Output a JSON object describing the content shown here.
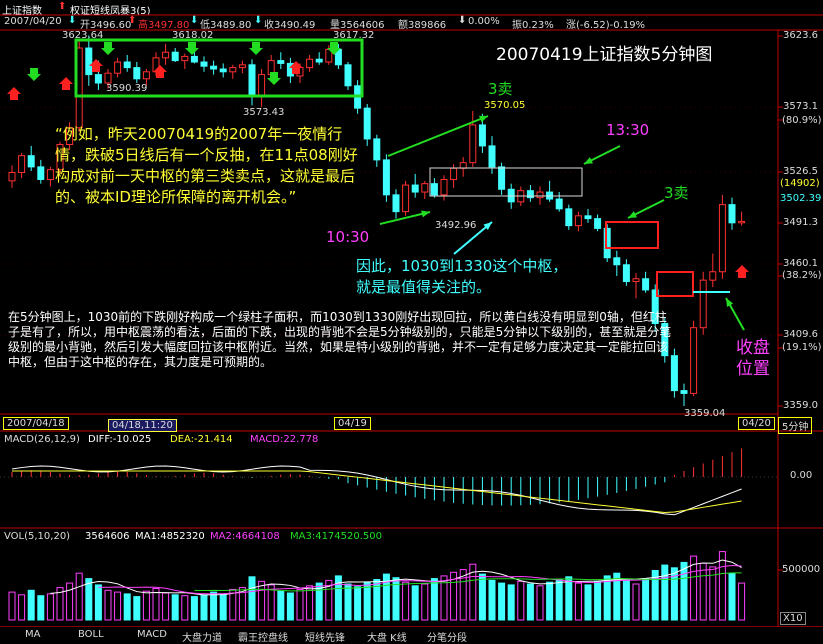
{
  "header": {
    "index_name": "上证指数",
    "ma_label": "权证短线凤暴3(5)",
    "open": "开3496.60",
    "high": "高3497.80",
    "low": "低3489.80",
    "close": "收3490.49",
    "volume": "量3564606",
    "amount": "额389866",
    "change_pct": "0.00%",
    "amplitude": "振0.23%",
    "change": "涨(-6.52)-0.19%",
    "date_tag": "2007/04/20"
  },
  "chart_data": [
    {
      "type": "candlestick",
      "title": "20070419上证指数5分钟图",
      "y_ticks": [
        "3623.6",
        "3573.1",
        "(80.9%)",
        "3526.5",
        "(14902)",
        "3502.39",
        "3491.3",
        "3460.1",
        "(38.2%)",
        "3409.6",
        "(19.1%)",
        "3359.0"
      ],
      "ylim": [
        3359.0,
        3623.6
      ],
      "price_labels": [
        "3623.64",
        "3618.02",
        "3617.32",
        "3590.39",
        "3573.43",
        "3570.05",
        "3492.96",
        "3359.04"
      ],
      "x_labels": [
        "2007/04/18",
        "04/18,11:20",
        "04/19",
        "04/20",
        "5分钟"
      ],
      "candles": [
        [
          3520,
          3531,
          3515,
          3526
        ],
        [
          3526,
          3540,
          3522,
          3538
        ],
        [
          3538,
          3545,
          3527,
          3530
        ],
        [
          3530,
          3535,
          3518,
          3521
        ],
        [
          3521,
          3530,
          3516,
          3528
        ],
        [
          3528,
          3548,
          3525,
          3546
        ],
        [
          3546,
          3562,
          3542,
          3558
        ],
        [
          3558,
          3620,
          3555,
          3615
        ],
        [
          3615,
          3624,
          3588,
          3596
        ],
        [
          3596,
          3606,
          3585,
          3590
        ],
        [
          3590,
          3600,
          3586,
          3597
        ],
        [
          3597,
          3608,
          3594,
          3605
        ],
        [
          3605,
          3610,
          3598,
          3601
        ],
        [
          3601,
          3605,
          3590,
          3593
        ],
        [
          3593,
          3600,
          3588,
          3598
        ],
        [
          3598,
          3612,
          3595,
          3608
        ],
        [
          3608,
          3618,
          3603,
          3612
        ],
        [
          3612,
          3615,
          3605,
          3606
        ],
        [
          3606,
          3611,
          3600,
          3609
        ],
        [
          3609,
          3613,
          3604,
          3605
        ],
        [
          3605,
          3609,
          3598,
          3602
        ],
        [
          3602,
          3606,
          3596,
          3600
        ],
        [
          3600,
          3604,
          3594,
          3598
        ],
        [
          3598,
          3603,
          3593,
          3601
        ],
        [
          3601,
          3606,
          3597,
          3603
        ],
        [
          3603,
          3607,
          3574,
          3580
        ],
        [
          3580,
          3600,
          3573,
          3596
        ],
        [
          3596,
          3610,
          3592,
          3606
        ],
        [
          3606,
          3612,
          3600,
          3604
        ],
        [
          3604,
          3608,
          3590,
          3595
        ],
        [
          3595,
          3604,
          3590,
          3601
        ],
        [
          3601,
          3610,
          3598,
          3607
        ],
        [
          3607,
          3612,
          3603,
          3605
        ],
        [
          3605,
          3617,
          3603,
          3614
        ],
        [
          3614,
          3618,
          3600,
          3603
        ],
        [
          3603,
          3605,
          3585,
          3588
        ],
        [
          3588,
          3592,
          3568,
          3572
        ],
        [
          3572,
          3575,
          3545,
          3550
        ],
        [
          3550,
          3553,
          3530,
          3535
        ],
        [
          3535,
          3539,
          3505,
          3510
        ],
        [
          3510,
          3514,
          3493,
          3498
        ],
        [
          3498,
          3520,
          3495,
          3517
        ],
        [
          3517,
          3525,
          3508,
          3512
        ],
        [
          3512,
          3520,
          3507,
          3518
        ],
        [
          3518,
          3522,
          3508,
          3510
        ],
        [
          3510,
          3524,
          3506,
          3521
        ],
        [
          3521,
          3532,
          3515,
          3529
        ],
        [
          3529,
          3537,
          3523,
          3533
        ],
        [
          3533,
          3570,
          3530,
          3560
        ],
        [
          3560,
          3568,
          3540,
          3545
        ],
        [
          3545,
          3552,
          3525,
          3530
        ],
        [
          3530,
          3533,
          3510,
          3514
        ],
        [
          3514,
          3518,
          3500,
          3505
        ],
        [
          3505,
          3516,
          3502,
          3513
        ],
        [
          3513,
          3517,
          3505,
          3508
        ],
        [
          3508,
          3516,
          3503,
          3512
        ],
        [
          3512,
          3520,
          3505,
          3507
        ],
        [
          3507,
          3512,
          3498,
          3500
        ],
        [
          3500,
          3503,
          3485,
          3488
        ],
        [
          3488,
          3498,
          3484,
          3495
        ],
        [
          3495,
          3500,
          3490,
          3493
        ],
        [
          3493,
          3496,
          3484,
          3486
        ],
        [
          3486,
          3489,
          3462,
          3465
        ],
        [
          3465,
          3470,
          3452,
          3460
        ],
        [
          3460,
          3464,
          3445,
          3448
        ],
        [
          3448,
          3454,
          3436,
          3450
        ],
        [
          3450,
          3455,
          3440,
          3442
        ],
        [
          3442,
          3446,
          3412,
          3418
        ],
        [
          3418,
          3422,
          3390,
          3395
        ],
        [
          3395,
          3400,
          3365,
          3370
        ],
        [
          3370,
          3375,
          3359,
          3368
        ],
        [
          3368,
          3420,
          3366,
          3415
        ],
        [
          3415,
          3455,
          3410,
          3449
        ],
        [
          3449,
          3468,
          3444,
          3455
        ],
        [
          3455,
          3510,
          3450,
          3503
        ],
        [
          3503,
          3508,
          3485,
          3490
        ],
        [
          3490,
          3498,
          3488,
          3491
        ]
      ]
    },
    {
      "type": "line",
      "title": "MACD(26,12,9)",
      "legend": [
        "DIFF:-10.025",
        "DEA:-21.414",
        "MACD:22.778"
      ],
      "y_ticks": [
        "0.00"
      ]
    },
    {
      "type": "bar",
      "title": "VOL(5,10,20)",
      "legend": [
        "3564606",
        "MA1:4852320",
        "MA2:4664108",
        "MA3:4174520.500"
      ],
      "y_ticks": [
        "500000",
        "X10"
      ],
      "values": [
        3.1,
        2.8,
        3.3,
        2.7,
        2.9,
        3.6,
        4.1,
        5.2,
        4.6,
        3.9,
        3.3,
        3.1,
        2.9,
        2.6,
        3.2,
        3.5,
        3.0,
        2.8,
        2.7,
        2.6,
        2.8,
        3.1,
        2.9,
        3.4,
        3.6,
        4.8,
        4.3,
        3.9,
        3.2,
        3.0,
        3.4,
        3.8,
        4.1,
        4.4,
        4.9,
        4.0,
        3.7,
        4.2,
        4.5,
        5.1,
        4.7,
        4.2,
        3.8,
        4.0,
        4.6,
        4.9,
        5.3,
        5.6,
        6.2,
        5.1,
        4.4,
        4.1,
        3.9,
        4.3,
        4.0,
        3.8,
        4.2,
        4.5,
        4.8,
        4.1,
        3.9,
        4.3,
        4.9,
        5.2,
        4.4,
        4.0,
        4.6,
        5.5,
        6.1,
        5.8,
        6.4,
        7.1,
        6.3,
        5.9,
        7.6,
        5.2,
        4.1
      ]
    }
  ],
  "annotations": {
    "sell3_a": "3卖",
    "sell3_b": "3卖",
    "t1030": "10:30",
    "t1330": "13:30",
    "close_pos": "收盘\n位置",
    "quote": "“例如，昨天20070419的2007年一夜情行情，跌破5日线后有一个反抽，在11点08刚好构成对前一天中枢的第三类卖点，这就是最后的、被本ID理论所保障的离开机会。”",
    "pivot_note": "因此，1030到1330这个中枢，就是最值得关注的。",
    "body_note": "在5分钟图上，1030前的下跌刚好构成一个绿柱子面积，而1030到1330刚好出现回拉，所以黄白线没有明显到0轴，但红柱子是有了，所以，用中枢震荡的看法，后面的下跌，出现的背驰不会是5分钟级别的，只能是5分钟以下级别的，甚至就是分笔级别的最小背驰，然后引发大幅度回拉该中枢附近。当然，如果是特小级别的背驰，并不一定有足够力度决定其一定能拉回该中枢，但由于这中枢的存在，其力度是可预期的。"
  },
  "tabs": [
    "MA",
    "BOLL",
    "MACD",
    "大盘力道",
    "霸王控盘线",
    "短线先锋",
    "大盘 K线",
    "分笔分段"
  ],
  "colors": {
    "up": "#ff3030",
    "down": "#40ffff",
    "green": "#22dd22",
    "yellow": "#ffff33",
    "magenta": "#ff40ff",
    "white": "#ffffff",
    "axis": "#c00000"
  }
}
